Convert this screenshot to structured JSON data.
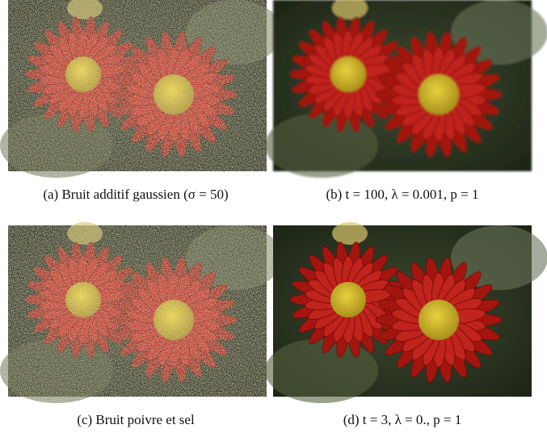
{
  "figure": {
    "panels": [
      {
        "caption": "(a)  Bruit additif gaussien (σ = 50)"
      },
      {
        "caption": "(b)  t = 100, λ = 0.001, p = 1"
      },
      {
        "caption": "(c)  Bruit poivre et sel"
      },
      {
        "caption": "(d)  t = 3, λ = 0., p = 1"
      }
    ]
  }
}
